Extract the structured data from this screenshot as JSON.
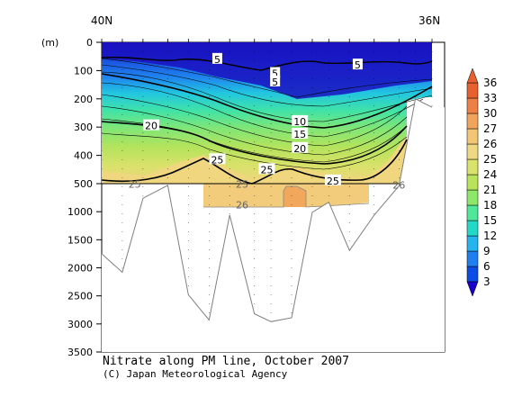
{
  "chart_data": {
    "type": "heatmap",
    "title": "Nitrate along PM line, October 2007",
    "credit": "(C) Japan Meteorological Agency",
    "x_tick_labels": [
      "40N",
      "36N"
    ],
    "xlim": [
      40,
      36
    ],
    "ylabel": "(m)",
    "y_ticks_upper": [
      0,
      100,
      200,
      300,
      400,
      500
    ],
    "y_ticks_lower": [
      1000,
      1500,
      2000,
      2500,
      3000,
      3500
    ],
    "y_break": 500,
    "ylim": [
      0,
      3500
    ],
    "colorbar": {
      "levels": [
        3,
        6,
        9,
        12,
        15,
        18,
        21,
        24,
        25,
        26,
        27,
        30,
        33,
        36
      ],
      "colors": [
        "#1a00cc",
        "#0a4de6",
        "#1f7ff0",
        "#25b4ee",
        "#22d8c7",
        "#4fe89a",
        "#8de86a",
        "#b8e35a",
        "#d9e26a",
        "#eed883",
        "#f3c675",
        "#f2a35c",
        "#ee8045",
        "#e8602e"
      ]
    },
    "contour_labels": [
      {
        "value": "5",
        "lat": 38.6,
        "depth": 60
      },
      {
        "value": "5",
        "lat": 36.9,
        "depth": 80
      },
      {
        "value": "5",
        "lat": 37.9,
        "depth": 110
      },
      {
        "value": "5",
        "lat": 37.9,
        "depth": 140
      },
      {
        "value": "10",
        "lat": 37.6,
        "depth": 280
      },
      {
        "value": "15",
        "lat": 37.6,
        "depth": 325
      },
      {
        "value": "20",
        "lat": 37.6,
        "depth": 375
      },
      {
        "value": "20",
        "lat": 39.4,
        "depth": 295
      },
      {
        "value": "25",
        "lat": 38.6,
        "depth": 415
      },
      {
        "value": "25",
        "lat": 38.0,
        "depth": 450
      },
      {
        "value": "25",
        "lat": 37.2,
        "depth": 490
      },
      {
        "value": "25",
        "lat": 39.6,
        "depth": 505
      },
      {
        "value": "25",
        "lat": 38.3,
        "depth": 510
      },
      {
        "value": "26",
        "lat": 38.3,
        "depth": 880
      },
      {
        "value": "26",
        "lat": 36.4,
        "depth": 525
      }
    ],
    "bottom_profile": [
      {
        "lat": 40.0,
        "depth": 1750
      },
      {
        "lat": 39.75,
        "depth": 2080
      },
      {
        "lat": 39.5,
        "depth": 760
      },
      {
        "lat": 39.2,
        "depth": 530
      },
      {
        "lat": 38.95,
        "depth": 2480
      },
      {
        "lat": 38.7,
        "depth": 2930
      },
      {
        "lat": 38.45,
        "depth": 1060
      },
      {
        "lat": 38.15,
        "depth": 2820
      },
      {
        "lat": 37.95,
        "depth": 2960
      },
      {
        "lat": 37.7,
        "depth": 2890
      },
      {
        "lat": 37.45,
        "depth": 1010
      },
      {
        "lat": 37.25,
        "depth": 830
      },
      {
        "lat": 37.0,
        "depth": 1690
      },
      {
        "lat": 36.7,
        "depth": 1060
      },
      {
        "lat": 36.4,
        "depth": 540
      },
      {
        "lat": 36.2,
        "depth": 200
      },
      {
        "lat": 36.0,
        "depth": 230
      }
    ]
  }
}
